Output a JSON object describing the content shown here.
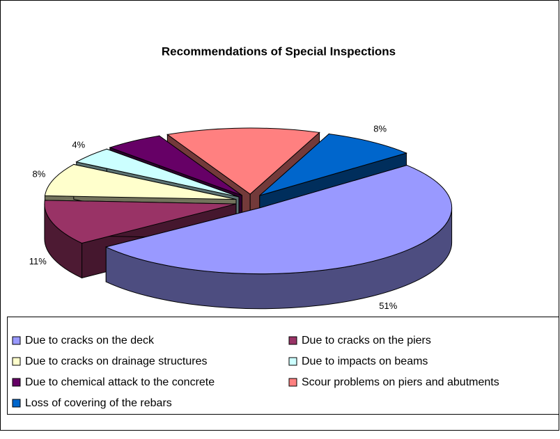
{
  "chart_data": {
    "type": "pie3d",
    "title": "Recommendations of Special Inspections",
    "categories": [
      "Due to cracks on the deck",
      "Due to cracks on the piers",
      "Due to cracks on drainage structures",
      "Due to impacts on beams",
      "Due to chemical attack to the concrete",
      "Scour problems on piers and abutments",
      "Loss of covering of the rebars"
    ],
    "values": [
      51,
      11,
      8,
      4,
      5,
      13,
      8
    ],
    "value_labels": [
      "51%",
      "11%",
      "8%",
      "4%",
      null,
      null,
      "8%"
    ],
    "colors": [
      "#9999ff",
      "#993366",
      "#ffffcc",
      "#ccffff",
      "#660066",
      "#ff8080",
      "#0066cc"
    ]
  }
}
